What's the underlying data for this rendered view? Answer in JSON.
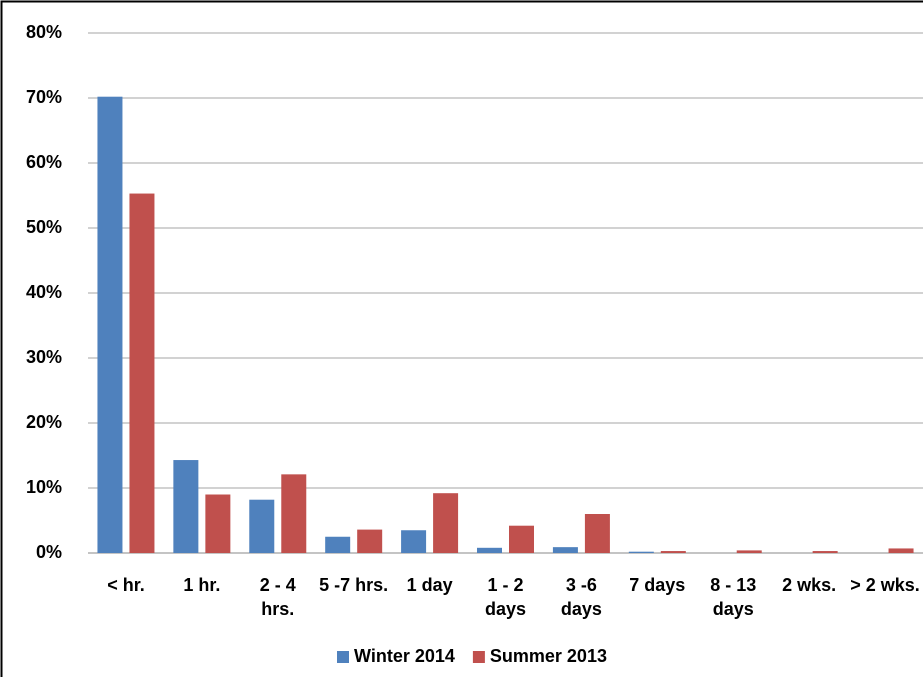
{
  "chart_data": {
    "type": "bar",
    "categories": [
      "< hr.",
      "1 hr.",
      "2 - 4 hrs.",
      "5 -7 hrs.",
      "1 day",
      "1 - 2 days",
      "3 -6 days",
      "7 days",
      "8 - 13 days",
      "2 wks.",
      "> 2 wks."
    ],
    "series": [
      {
        "name": "Winter 2014",
        "color": "#4f81bd",
        "values": [
          70.2,
          14.3,
          8.2,
          2.5,
          3.5,
          0.8,
          0.9,
          0.2,
          0,
          0,
          0
        ]
      },
      {
        "name": "Summer 2013",
        "color": "#c0504d",
        "values": [
          55.3,
          9.0,
          12.1,
          3.6,
          9.2,
          4.2,
          6.0,
          0.3,
          0.4,
          0.3,
          0.7
        ]
      }
    ],
    "ylim": [
      0,
      80
    ],
    "yticks": [
      {
        "value": 0,
        "label": "0%"
      },
      {
        "value": 10,
        "label": "10%"
      },
      {
        "value": 20,
        "label": "20%"
      },
      {
        "value": 30,
        "label": "30%"
      },
      {
        "value": 40,
        "label": "40%"
      },
      {
        "value": 50,
        "label": "50%"
      },
      {
        "value": 60,
        "label": "60%"
      },
      {
        "value": 70,
        "label": "70%"
      },
      {
        "value": 80,
        "label": "80%"
      }
    ],
    "grid": true,
    "legend": "bottom"
  }
}
